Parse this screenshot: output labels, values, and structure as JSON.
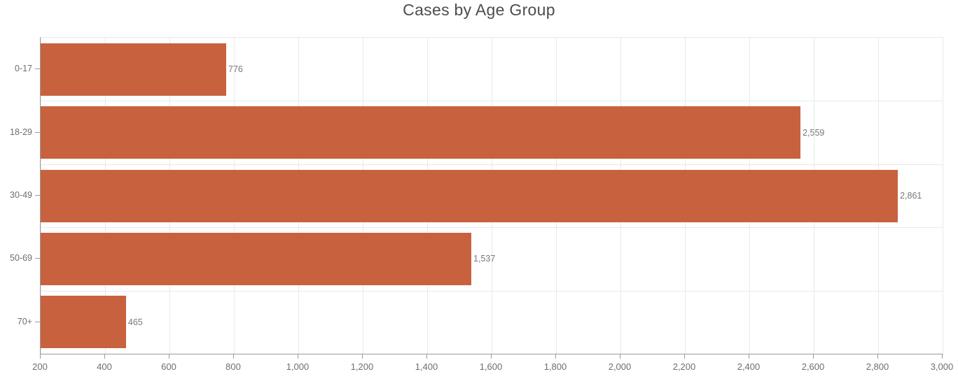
{
  "chart_data": {
    "type": "bar",
    "orientation": "horizontal",
    "title": "Cases by Age Group",
    "categories": [
      "0-17",
      "18-29",
      "30-49",
      "50-69",
      "70+"
    ],
    "values": [
      776,
      2559,
      2861,
      1537,
      465
    ],
    "value_labels": [
      "776",
      "2,559",
      "2,861",
      "1,537",
      "465"
    ],
    "xlabel": "",
    "ylabel": "",
    "xlim": [
      200,
      3000
    ],
    "x_ticks": [
      200,
      400,
      600,
      800,
      1000,
      1200,
      1400,
      1600,
      1800,
      2000,
      2200,
      2400,
      2600,
      2800,
      3000
    ],
    "x_tick_labels": [
      "200",
      "400",
      "600",
      "800",
      "1,000",
      "1,200",
      "1,400",
      "1,600",
      "1,800",
      "2,000",
      "2,200",
      "2,400",
      "2,600",
      "2,800",
      "3,000"
    ],
    "grid": true,
    "legend": "none",
    "bar_color": "#c8623e",
    "colors": {
      "title": "#4d4d4d",
      "axis_tick_label": "#6e6e6e",
      "value_label": "#787878",
      "axis_line": "#9a9a9a",
      "gridline": "#e9e9e9",
      "background": "#ffffff"
    }
  }
}
